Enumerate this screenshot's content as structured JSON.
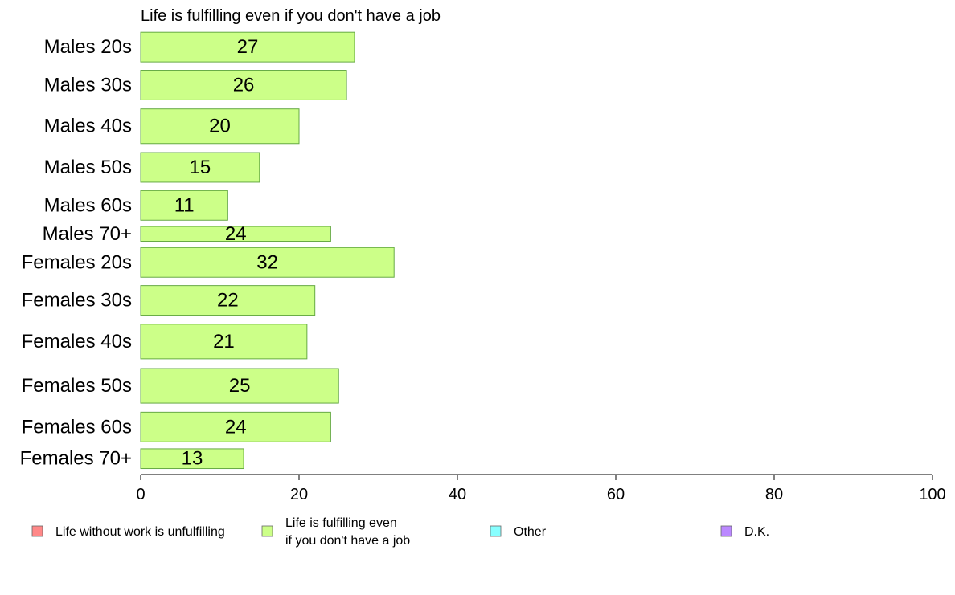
{
  "chart_data": {
    "type": "bar",
    "orientation": "horizontal",
    "title": "Life is fulfilling even if you don't have a job",
    "xlabel": "",
    "ylabel": "",
    "xlim": [
      0,
      100
    ],
    "x_ticks": [
      "0",
      "20",
      "40",
      "60",
      "80",
      "100"
    ],
    "grid": false,
    "categories": [
      "Males 20s",
      "Males 30s",
      "Males 40s",
      "Males 50s",
      "Males 60s",
      "Males 70+",
      "Females 20s",
      "Females 30s",
      "Females 40s",
      "Females 50s",
      "Females 60s",
      "Females 70+"
    ],
    "category_weights": [
      36,
      36,
      42,
      36,
      36,
      18,
      36,
      36,
      42,
      42,
      36,
      24
    ],
    "values": [
      27,
      26,
      20,
      15,
      11,
      24,
      32,
      22,
      21,
      25,
      24,
      13
    ],
    "data_labels": [
      "27",
      "26",
      "20",
      "15",
      "11",
      "24",
      "32",
      "22",
      "21",
      "25",
      "24",
      "13"
    ],
    "bar_color": "#ccff88",
    "bar_edge_color": "#66aa44",
    "legend_placement": "bottom",
    "legend": [
      {
        "label": "Life without work is unfulfilling",
        "color": "#ff8888"
      },
      {
        "label": "Life is fulfilling even if you don't have a job",
        "color": "#ccff88"
      },
      {
        "label": "Other",
        "color": "#88ffff"
      },
      {
        "label": "D.K.",
        "color": "#bb88ff"
      }
    ]
  }
}
